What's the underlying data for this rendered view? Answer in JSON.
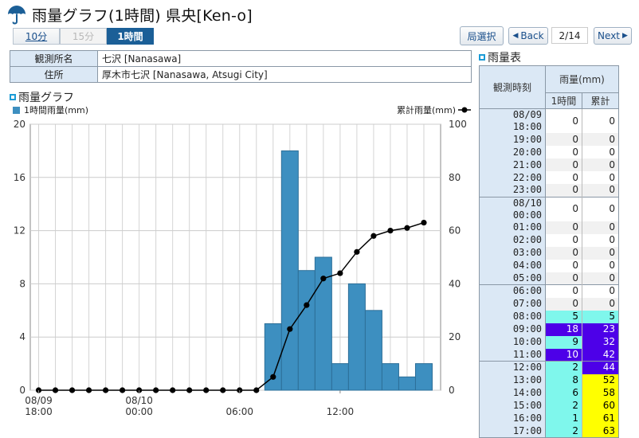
{
  "header": {
    "title": "雨量グラフ(1時間) 県央[Ken-o]"
  },
  "tabs": [
    {
      "label": "10分",
      "state": "link"
    },
    {
      "label": "15分",
      "state": "disabled"
    },
    {
      "label": "1時間",
      "state": "active"
    }
  ],
  "nav": {
    "station_select": "局選択",
    "back": "Back",
    "page": "2/14",
    "next": "Next"
  },
  "info": {
    "station_label": "観測所名",
    "station_value": "七沢 [Nanasawa]",
    "address_label": "住所",
    "address_value": "厚木市七沢 [Nanasawa, Atsugi City]"
  },
  "graph_title": "雨量グラフ",
  "table_title": "雨量表",
  "table": {
    "col_time": "観測時刻",
    "col_rain": "雨量(mm)",
    "col_hourly": "1時間",
    "col_cumulative": "累計",
    "rows": [
      {
        "time": "08/09 18:00",
        "hourly": "0",
        "cum": "0"
      },
      {
        "time": "19:00",
        "hourly": "0",
        "cum": "0"
      },
      {
        "time": "20:00",
        "hourly": "0",
        "cum": "0"
      },
      {
        "time": "21:00",
        "hourly": "0",
        "cum": "0"
      },
      {
        "time": "22:00",
        "hourly": "0",
        "cum": "0"
      },
      {
        "time": "23:00",
        "hourly": "0",
        "cum": "0"
      },
      {
        "time": "08/10 00:00",
        "hourly": "0",
        "cum": "0"
      },
      {
        "time": "01:00",
        "hourly": "0",
        "cum": "0"
      },
      {
        "time": "02:00",
        "hourly": "0",
        "cum": "0"
      },
      {
        "time": "03:00",
        "hourly": "0",
        "cum": "0"
      },
      {
        "time": "04:00",
        "hourly": "0",
        "cum": "0"
      },
      {
        "time": "05:00",
        "hourly": "0",
        "cum": "0"
      },
      {
        "time": "06:00",
        "hourly": "0",
        "cum": "0"
      },
      {
        "time": "07:00",
        "hourly": "0",
        "cum": "0"
      },
      {
        "time": "08:00",
        "hourly": "5",
        "cum": "5"
      },
      {
        "time": "09:00",
        "hourly": "18",
        "cum": "23"
      },
      {
        "time": "10:00",
        "hourly": "9",
        "cum": "32"
      },
      {
        "time": "11:00",
        "hourly": "10",
        "cum": "42"
      },
      {
        "time": "12:00",
        "hourly": "2",
        "cum": "44"
      },
      {
        "time": "13:00",
        "hourly": "8",
        "cum": "52"
      },
      {
        "time": "14:00",
        "hourly": "6",
        "cum": "58"
      },
      {
        "time": "15:00",
        "hourly": "2",
        "cum": "60"
      },
      {
        "time": "16:00",
        "hourly": "1",
        "cum": "61"
      },
      {
        "time": "17:00",
        "hourly": "2",
        "cum": "63"
      }
    ]
  },
  "colors": {
    "bar": "#3d8fc0",
    "zero": "#ffffff",
    "light": "#7ff7ec",
    "heavy": "#4d00e8",
    "yellow": "#ffff00",
    "accent": "#1b5f97"
  },
  "chart_data": {
    "type": "bar+line",
    "x": [
      "18:00",
      "19:00",
      "20:00",
      "21:00",
      "22:00",
      "23:00",
      "00:00",
      "01:00",
      "02:00",
      "03:00",
      "04:00",
      "05:00",
      "06:00",
      "07:00",
      "08:00",
      "09:00",
      "10:00",
      "11:00",
      "12:00",
      "13:00",
      "14:00",
      "15:00",
      "16:00",
      "17:00"
    ],
    "xticks": [
      {
        "index": 0,
        "line1": "08/09",
        "line2": "18:00"
      },
      {
        "index": 6,
        "line1": "08/10",
        "line2": "00:00"
      },
      {
        "index": 12,
        "line1": "",
        "line2": "06:00"
      },
      {
        "index": 18,
        "line1": "",
        "line2": "12:00"
      }
    ],
    "series": [
      {
        "name": "1時間雨量(mm)",
        "type": "bar",
        "axis": "left",
        "values": [
          0,
          0,
          0,
          0,
          0,
          0,
          0,
          0,
          0,
          0,
          0,
          0,
          0,
          0,
          5,
          18,
          9,
          10,
          2,
          8,
          6,
          2,
          1,
          2
        ]
      },
      {
        "name": "累計雨量(mm)",
        "type": "line",
        "axis": "right",
        "values": [
          0,
          0,
          0,
          0,
          0,
          0,
          0,
          0,
          0,
          0,
          0,
          0,
          0,
          0,
          5,
          23,
          32,
          42,
          44,
          52,
          58,
          60,
          61,
          63
        ]
      }
    ],
    "ylim_left": [
      0,
      20
    ],
    "yticks_left": [
      0,
      4,
      8,
      12,
      16,
      20
    ],
    "ylim_right": [
      0,
      100
    ],
    "yticks_right": [
      0,
      20,
      40,
      60,
      80,
      100
    ],
    "grid": true,
    "legend": "top"
  }
}
